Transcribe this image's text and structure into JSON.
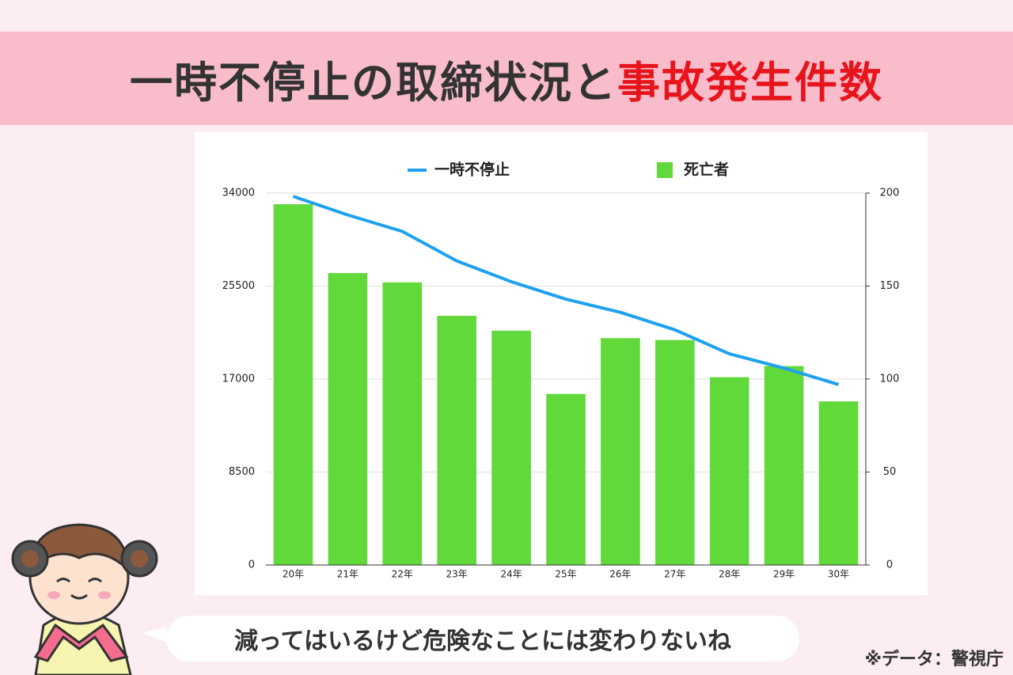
{
  "header": {
    "title": "一時不停止の取締状況と",
    "title_highlight": "事故発生件数"
  },
  "chart_data": {
    "type": "bar_line",
    "categories": [
      "20年",
      "21年",
      "22年",
      "23年",
      "24年",
      "25年",
      "26年",
      "27年",
      "28年",
      "29年",
      "30年"
    ],
    "series": [
      {
        "name": "一時不停止",
        "type": "line",
        "color": "#1ea1ee",
        "axis": "y",
        "values": [
          33700,
          32000,
          30500,
          27800,
          25900,
          24300,
          23100,
          21500,
          19300,
          18000,
          16500
        ]
      },
      {
        "name": "死亡者",
        "type": "bar",
        "color": "#62d93a",
        "axis": "y2",
        "values": [
          194,
          157,
          152,
          134,
          126,
          92,
          122,
          121,
          101,
          107,
          88
        ]
      }
    ],
    "ylim": [
      0,
      34000
    ],
    "yticks": [
      0,
      8500,
      17000,
      25500,
      34000
    ],
    "y2lim": [
      0,
      200
    ],
    "y2ticks": [
      0,
      50,
      100,
      150,
      200
    ],
    "grid": true,
    "legend": "top"
  },
  "speech": "減ってはいるけど危険なことには変わりないね",
  "source": "※データ：警視庁"
}
